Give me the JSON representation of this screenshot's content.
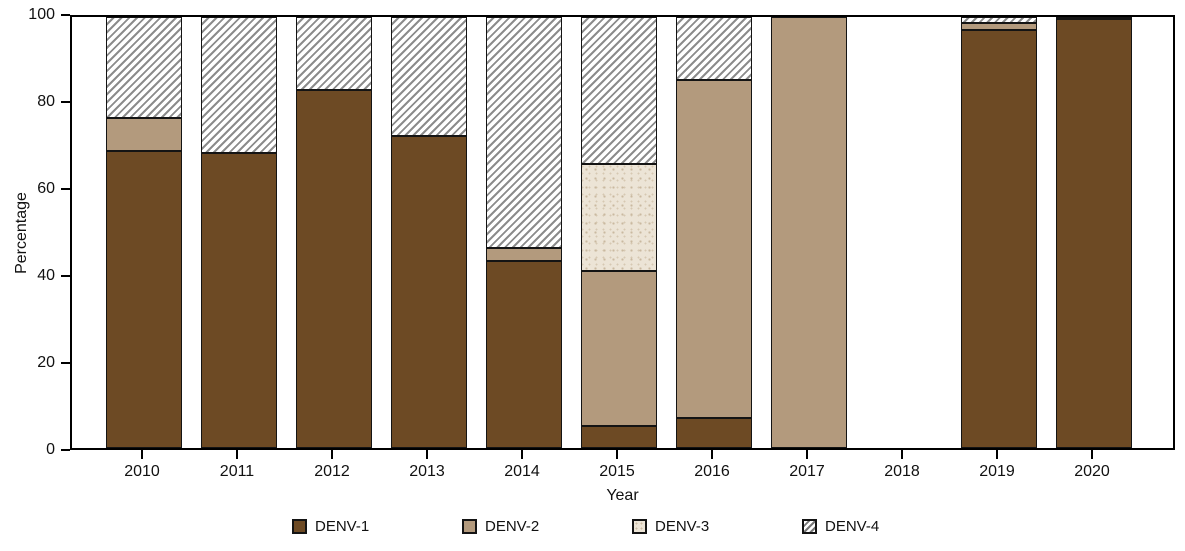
{
  "figure": {
    "background": "#ffffff",
    "axis_color": "#000000"
  },
  "chart_data": {
    "type": "bar",
    "subtype": "stacked-percentage",
    "title": "",
    "xlabel": "Year",
    "ylabel": "Percentage",
    "ylim": [
      0,
      100
    ],
    "yticks": [
      0,
      20,
      40,
      60,
      80,
      100
    ],
    "grid": false,
    "legend_position": "bottom",
    "categories": [
      "2010",
      "2011",
      "2012",
      "2013",
      "2014",
      "2015",
      "2016",
      "2017",
      "2018",
      "2019",
      "2020"
    ],
    "series": [
      {
        "name": "DENV-1",
        "style": "solid",
        "color": "#6d4a24",
        "values": [
          69,
          68.5,
          83,
          72.5,
          43.5,
          5,
          7,
          0,
          0,
          97,
          99.5
        ]
      },
      {
        "name": "DENV-2",
        "style": "solid",
        "color": "#b39a7d",
        "values": [
          7.5,
          0,
          0,
          0,
          3,
          36,
          78.5,
          100,
          0,
          1.5,
          0
        ]
      },
      {
        "name": "DENV-3",
        "style": "dotted",
        "color": "#ece4d6",
        "values": [
          0,
          0,
          0,
          0,
          0,
          25,
          0,
          0,
          0,
          0,
          0
        ]
      },
      {
        "name": "DENV-4",
        "style": "hatched",
        "color": "#ffffff",
        "values": [
          23.5,
          31.5,
          17,
          27.5,
          53.5,
          34,
          14.5,
          0,
          0,
          1.5,
          0.5
        ]
      }
    ],
    "note": "2018 has no bar (no data shown)"
  }
}
